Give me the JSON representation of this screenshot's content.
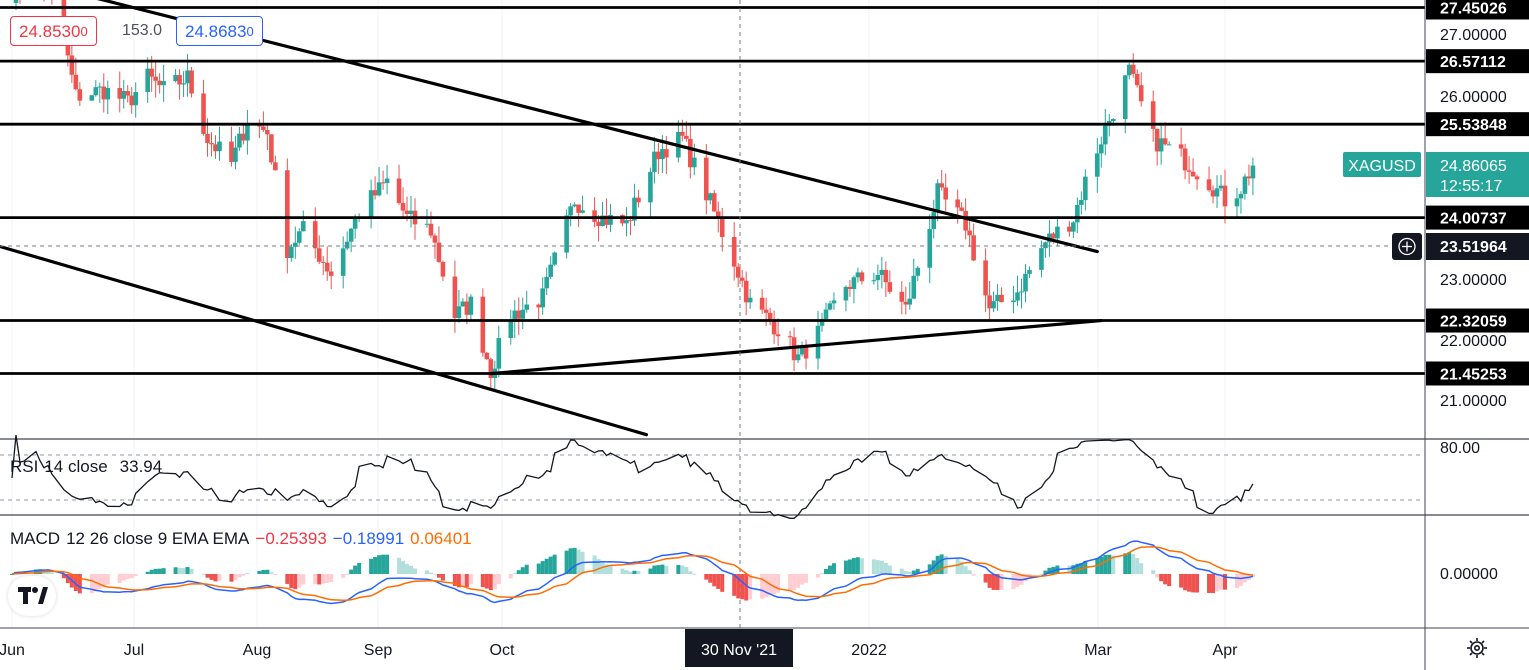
{
  "quote": {
    "bid": "24.8530",
    "bid_suffix": "0",
    "spread": "153.0",
    "ask": "24.8683",
    "ask_suffix": "0"
  },
  "symbol": {
    "name": "XAGUSD",
    "price": "24.86065",
    "countdown": "12:55:17"
  },
  "crosshair": {
    "price": "23.51964",
    "date": "30 Nov '21"
  },
  "price_axis_ticks": [
    "27.00000",
    "26.00000",
    "23.00000",
    "22.00000",
    "21.00000"
  ],
  "level_labels": [
    "27.45026",
    "26.57112",
    "25.53848",
    "24.00737",
    "22.32059",
    "21.45253"
  ],
  "time_axis": [
    "Jun",
    "Jul",
    "Aug",
    "Sep",
    "Oct",
    "2022",
    "Mar",
    "Apr"
  ],
  "rsi": {
    "name": "RSI",
    "params": "14 close",
    "value": "33.94",
    "axis_label": "80.00"
  },
  "macd": {
    "name": "MACD",
    "params": "12 26 close 9 EMA EMA",
    "histogram": "−0.25393",
    "macd": "−0.18991",
    "signal": "0.06401",
    "axis_label": "0.00000"
  },
  "colors": {
    "up": "#26a69a",
    "down": "#ef5350",
    "macd_line": "#2962ff",
    "signal_line": "#ff6d00",
    "hist_pos_light": "#b2dfdb",
    "hist_neg_light": "#ffcdd2"
  },
  "chart_data": {
    "type": "candlestick",
    "period": "daily",
    "ylim": [
      20.2,
      27.7
    ],
    "horizontal_levels": [
      27.45026,
      26.57112,
      25.53848,
      24.00737,
      22.32059,
      21.45253
    ],
    "trendlines": [
      {
        "from": [
          "2021-05-11",
          28.3
        ],
        "to": [
          "2022-02-28",
          23.45
        ]
      },
      {
        "from": [
          "2021-05-15",
          23.8
        ],
        "to": [
          "2021-11-07",
          20.45
        ]
      },
      {
        "from": [
          "2021-09-29",
          21.45
        ],
        "to": [
          "2022-03-01",
          22.32
        ]
      }
    ],
    "price_path": [
      [
        "2021-06-01",
        27.7
      ],
      [
        "2021-06-07",
        28.0
      ],
      [
        "2021-06-10",
        27.8
      ],
      [
        "2021-06-14",
        26.9
      ],
      [
        "2021-06-17",
        26.0
      ],
      [
        "2021-06-24",
        26.1
      ],
      [
        "2021-06-30",
        25.9
      ],
      [
        "2021-07-05",
        26.3
      ],
      [
        "2021-07-09",
        26.1
      ],
      [
        "2021-07-15",
        26.3
      ],
      [
        "2021-07-20",
        25.3
      ],
      [
        "2021-07-26",
        24.9
      ],
      [
        "2021-07-30",
        25.6
      ],
      [
        "2021-08-04",
        25.4
      ],
      [
        "2021-08-09",
        23.5
      ],
      [
        "2021-08-13",
        23.8
      ],
      [
        "2021-08-20",
        23.1
      ],
      [
        "2021-08-27",
        24.1
      ],
      [
        "2021-09-03",
        24.6
      ],
      [
        "2021-09-08",
        24.0
      ],
      [
        "2021-09-14",
        23.8
      ],
      [
        "2021-09-20",
        22.4
      ],
      [
        "2021-09-24",
        22.6
      ],
      [
        "2021-09-29",
        21.5
      ],
      [
        "2021-10-04",
        22.4
      ],
      [
        "2021-10-12",
        22.7
      ],
      [
        "2021-10-20",
        24.3
      ],
      [
        "2021-10-27",
        24.0
      ],
      [
        "2021-11-02",
        23.9
      ],
      [
        "2021-11-10",
        25.1
      ],
      [
        "2021-11-16",
        25.3
      ],
      [
        "2021-11-22",
        24.4
      ],
      [
        "2021-11-29",
        23.3
      ],
      [
        "2021-12-03",
        22.6
      ],
      [
        "2021-12-10",
        22.2
      ],
      [
        "2021-12-15",
        21.7
      ],
      [
        "2021-12-20",
        22.1
      ],
      [
        "2021-12-27",
        22.9
      ],
      [
        "2022-01-04",
        23.1
      ],
      [
        "2022-01-11",
        22.5
      ],
      [
        "2022-01-19",
        24.4
      ],
      [
        "2022-01-26",
        23.9
      ],
      [
        "2022-02-01",
        22.5
      ],
      [
        "2022-02-08",
        22.8
      ],
      [
        "2022-02-15",
        23.6
      ],
      [
        "2022-02-22",
        24.0
      ],
      [
        "2022-02-26",
        24.8
      ],
      [
        "2022-03-01",
        25.3
      ],
      [
        "2022-03-08",
        26.4
      ],
      [
        "2022-03-14",
        25.3
      ],
      [
        "2022-03-21",
        25.0
      ],
      [
        "2022-03-28",
        24.6
      ],
      [
        "2022-04-01",
        24.3
      ],
      [
        "2022-04-05",
        24.5
      ],
      [
        "2022-04-08",
        24.8606
      ]
    ]
  }
}
